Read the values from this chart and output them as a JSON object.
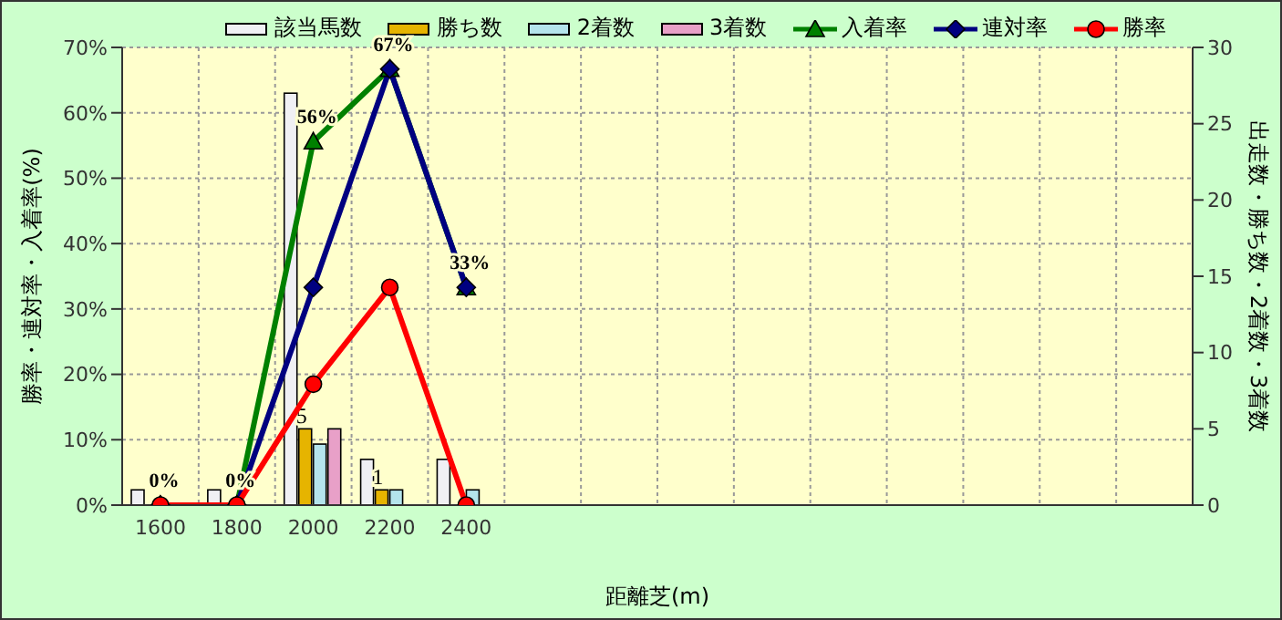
{
  "chart_data": {
    "type": "bar",
    "xlabel": "距離芝(m)",
    "ylabel": "勝率・連対率・入着率(%)",
    "y2label": "出走数・勝ち数・2着数・3着数",
    "categories": [
      "1600",
      "1800",
      "2000",
      "2200",
      "2400",
      null,
      null,
      null,
      null,
      null,
      null,
      null,
      null,
      null
    ],
    "series": [
      {
        "name": "該当馬数",
        "axis": "y2",
        "color": "#f0f0f4",
        "values": [
          1,
          1,
          27,
          3,
          3,
          null,
          null,
          null,
          null,
          null,
          null,
          null,
          null,
          null
        ]
      },
      {
        "name": "勝ち数",
        "axis": "y2",
        "color": "#e6b400",
        "values": [
          0,
          0,
          5,
          1,
          0,
          null,
          null,
          null,
          null,
          null,
          null,
          null,
          null,
          null
        ],
        "value_labels": [
          null,
          null,
          "5",
          "1",
          null,
          null,
          null,
          null,
          null,
          null,
          null,
          null,
          null,
          null
        ]
      },
      {
        "name": "2着数",
        "axis": "y2",
        "color": "#b4e4ec",
        "values": [
          0,
          0,
          4,
          1,
          1,
          null,
          null,
          null,
          null,
          null,
          null,
          null,
          null,
          null
        ]
      },
      {
        "name": "3着数",
        "axis": "y2",
        "color": "#e8a0c8",
        "values": [
          0,
          0,
          5,
          0,
          0,
          null,
          null,
          null,
          null,
          null,
          null,
          null,
          null,
          null
        ]
      },
      {
        "name": "入着率",
        "type": "line",
        "axis": "y",
        "color": "#008000",
        "marker": "triangle",
        "values": [
          0,
          0,
          55.6,
          66.7,
          33.3,
          null,
          null,
          null,
          null,
          null,
          null,
          null,
          null,
          null
        ],
        "value_labels": [
          "0%",
          "0%",
          "56%",
          "67%",
          "33%",
          null,
          null,
          null,
          null,
          null,
          null,
          null,
          null,
          null
        ]
      },
      {
        "name": "連対率",
        "type": "line",
        "axis": "y",
        "color": "#000080",
        "marker": "diamond",
        "values": [
          0,
          0,
          33.3,
          66.7,
          33.3,
          null,
          null,
          null,
          null,
          null,
          null,
          null,
          null,
          null
        ]
      },
      {
        "name": "勝率",
        "type": "line",
        "axis": "y",
        "color": "#ff0000",
        "marker": "circle",
        "values": [
          0,
          0,
          18.5,
          33.3,
          0,
          null,
          null,
          null,
          null,
          null,
          null,
          null,
          null,
          null
        ]
      }
    ],
    "ylim": [
      0,
      70
    ],
    "yticks": [
      {
        "value": 0,
        "label": "0%"
      },
      {
        "value": 10,
        "label": "10%"
      },
      {
        "value": 20,
        "label": "20%"
      },
      {
        "value": 30,
        "label": "30%"
      },
      {
        "value": 40,
        "label": "40%"
      },
      {
        "value": 50,
        "label": "50%"
      },
      {
        "value": 60,
        "label": "60%"
      },
      {
        "value": 70,
        "label": "70%"
      }
    ],
    "y2lim": [
      0,
      30
    ],
    "y2ticks": [
      0,
      5,
      10,
      15,
      20,
      25,
      30
    ],
    "grid": true,
    "legend": "top"
  }
}
